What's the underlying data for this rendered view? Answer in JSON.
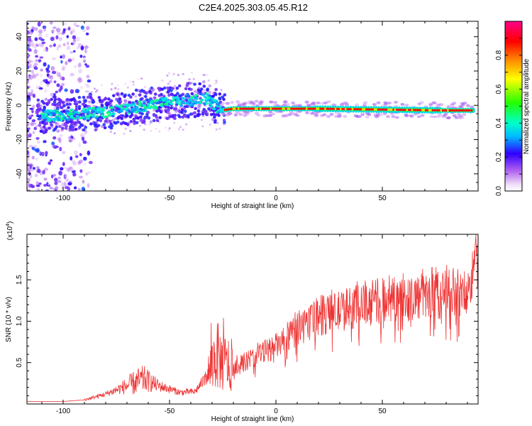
{
  "title": "C2E4.2025.303.05.45.R12",
  "chart_data": [
    {
      "type": "heatmap",
      "name": "spectrogram",
      "xlabel": "Height of straight line (km)",
      "ylabel": "Frequency (Hz)",
      "xlim": [
        -117,
        95
      ],
      "ylim": [
        -50,
        49
      ],
      "xticks": [
        -100,
        -50,
        0,
        50
      ],
      "yticks": [
        -40,
        -20,
        0,
        20,
        40
      ],
      "colorbar": {
        "label": "Normalized spectral amplitude",
        "range": [
          0,
          1
        ],
        "ticks": [
          0.0,
          0.2,
          0.4,
          0.6,
          0.8
        ]
      },
      "ridge": [
        {
          "x": -110,
          "f": -6
        },
        {
          "x": -100,
          "f": -6
        },
        {
          "x": -90,
          "f": -5
        },
        {
          "x": -80,
          "f": -4
        },
        {
          "x": -70,
          "f": -2
        },
        {
          "x": -60,
          "f": 0
        },
        {
          "x": -50,
          "f": 2
        },
        {
          "x": -40,
          "f": 3
        },
        {
          "x": -32,
          "f": 4
        },
        {
          "x": -26,
          "f": -3
        },
        {
          "x": -20,
          "f": -2
        },
        {
          "x": 0,
          "f": -2
        },
        {
          "x": 20,
          "f": -2
        },
        {
          "x": 50,
          "f": -2.5
        },
        {
          "x": 80,
          "f": -3
        },
        {
          "x": 93,
          "f": -3
        }
      ]
    },
    {
      "type": "line",
      "name": "snr",
      "xlabel": "Height of straight line (km)",
      "ylabel": "SNR (10 * v/v)",
      "multiplier": "(x10",
      "multiplier_exp": "4",
      "xlim": [
        -117,
        95
      ],
      "ylim": [
        0,
        2.05
      ],
      "xticks": [
        -100,
        -50,
        0,
        50
      ],
      "yticks": [
        0.5,
        1.0,
        1.5
      ],
      "color": "#ee3333",
      "trend": [
        {
          "x": -117,
          "y": 0.03
        },
        {
          "x": -100,
          "y": 0.03
        },
        {
          "x": -90,
          "y": 0.05
        },
        {
          "x": -80,
          "y": 0.12
        },
        {
          "x": -70,
          "y": 0.22
        },
        {
          "x": -62,
          "y": 0.3
        },
        {
          "x": -55,
          "y": 0.22
        },
        {
          "x": -45,
          "y": 0.14
        },
        {
          "x": -38,
          "y": 0.15
        },
        {
          "x": -32,
          "y": 0.35
        },
        {
          "x": -28,
          "y": 0.6
        },
        {
          "x": -25,
          "y": 0.5
        },
        {
          "x": -20,
          "y": 0.45
        },
        {
          "x": -15,
          "y": 0.5
        },
        {
          "x": -8,
          "y": 0.6
        },
        {
          "x": 0,
          "y": 0.7
        },
        {
          "x": 5,
          "y": 0.78
        },
        {
          "x": 10,
          "y": 0.9
        },
        {
          "x": 20,
          "y": 1.05
        },
        {
          "x": 30,
          "y": 1.12
        },
        {
          "x": 40,
          "y": 1.18
        },
        {
          "x": 50,
          "y": 1.25
        },
        {
          "x": 60,
          "y": 1.28
        },
        {
          "x": 70,
          "y": 1.3
        },
        {
          "x": 80,
          "y": 1.33
        },
        {
          "x": 90,
          "y": 1.3
        },
        {
          "x": 95,
          "y": 1.8
        }
      ]
    }
  ]
}
